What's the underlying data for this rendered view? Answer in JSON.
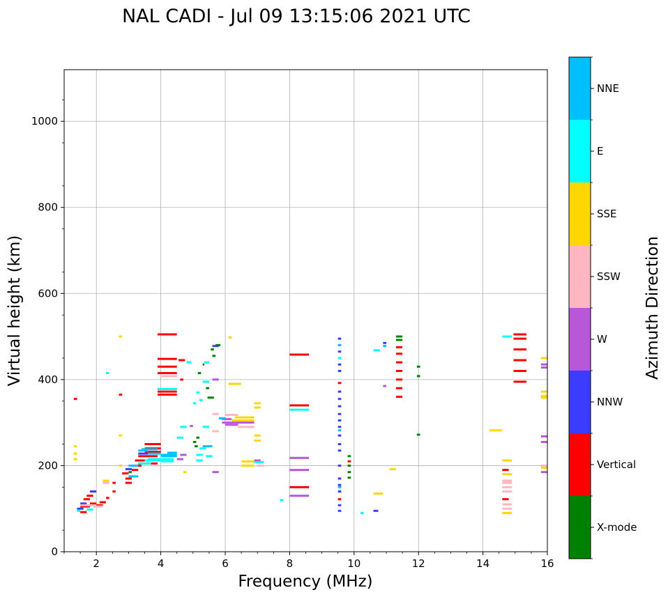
{
  "chart_data": {
    "type": "scatter",
    "title": "NAL CADI - Jul 09 13:15:06 2021 UTC",
    "xlabel": "Frequency (MHz)",
    "ylabel": "Virtual height (km)",
    "xlim": [
      1,
      16
    ],
    "ylim": [
      0,
      1120
    ],
    "xticks": [
      "2",
      "4",
      "6",
      "8",
      "10",
      "12",
      "14",
      "16"
    ],
    "yticks": [
      "0",
      "200",
      "400",
      "600",
      "800",
      "1000"
    ],
    "grid": true,
    "colorbar": {
      "label": "Azimuth Direction",
      "categories": [
        "X-mode",
        "Vertical",
        "NNW",
        "W",
        "SSW",
        "SSE",
        "E",
        "NNE"
      ],
      "colors": [
        "#008000",
        "#ff0000",
        "#3c3cff",
        "#b857d8",
        "#ffb6c1",
        "#ffd700",
        "#00ffff",
        "#00bfff"
      ]
    },
    "series": [
      {
        "name": "X-mode",
        "segments": [
          [
            5.0,
            5.1,
            255
          ],
          [
            5.05,
            5.15,
            245
          ],
          [
            5.1,
            5.2,
            265
          ],
          [
            5.15,
            5.25,
            415
          ],
          [
            5.3,
            5.35,
            435
          ],
          [
            5.4,
            5.5,
            380
          ],
          [
            5.45,
            5.65,
            358
          ],
          [
            5.6,
            5.7,
            455
          ],
          [
            5.55,
            5.65,
            470
          ],
          [
            5.7,
            5.85,
            480
          ],
          [
            11.3,
            11.5,
            492
          ],
          [
            11.3,
            11.5,
            500
          ],
          [
            11.95,
            12.05,
            430
          ],
          [
            11.95,
            12.05,
            408
          ],
          [
            11.95,
            12.05,
            272
          ],
          [
            9.8,
            9.9,
            222
          ],
          [
            9.8,
            9.9,
            200
          ],
          [
            9.8,
            9.9,
            185
          ],
          [
            9.8,
            9.9,
            172
          ],
          [
            3.0,
            3.1,
            185
          ]
        ]
      },
      {
        "name": "Vertical",
        "segments": [
          [
            1.5,
            1.7,
            92
          ],
          [
            1.5,
            1.8,
            105
          ],
          [
            1.6,
            1.8,
            122
          ],
          [
            1.7,
            1.9,
            130
          ],
          [
            1.8,
            2.0,
            112
          ],
          [
            2.0,
            2.2,
            108
          ],
          [
            2.1,
            2.3,
            115
          ],
          [
            2.3,
            2.4,
            125
          ],
          [
            2.5,
            2.6,
            140
          ],
          [
            2.5,
            2.6,
            160
          ],
          [
            2.8,
            3.0,
            182
          ],
          [
            2.9,
            3.1,
            170
          ],
          [
            2.9,
            3.1,
            160
          ],
          [
            3.1,
            3.3,
            190
          ],
          [
            3.2,
            3.4,
            200
          ],
          [
            3.2,
            3.9,
            212
          ],
          [
            3.3,
            3.9,
            205
          ],
          [
            3.3,
            3.9,
            222
          ],
          [
            3.5,
            4.0,
            232
          ],
          [
            3.5,
            4.0,
            240
          ],
          [
            3.5,
            4.0,
            250
          ],
          [
            3.9,
            4.5,
            372
          ],
          [
            3.9,
            4.5,
            365
          ],
          [
            3.9,
            4.5,
            415
          ],
          [
            3.9,
            4.5,
            430
          ],
          [
            3.9,
            4.5,
            448
          ],
          [
            3.9,
            4.5,
            505
          ],
          [
            4.6,
            4.7,
            400
          ],
          [
            4.55,
            4.75,
            445
          ],
          [
            8.0,
            8.6,
            458
          ],
          [
            8.0,
            8.6,
            340
          ],
          [
            8.0,
            8.6,
            150
          ],
          [
            9.5,
            9.6,
            122
          ],
          [
            9.5,
            9.6,
            392
          ],
          [
            9.8,
            9.9,
            210
          ],
          [
            11.3,
            11.5,
            360
          ],
          [
            11.3,
            11.5,
            380
          ],
          [
            11.3,
            11.5,
            400
          ],
          [
            11.3,
            11.5,
            420
          ],
          [
            11.3,
            11.5,
            440
          ],
          [
            11.3,
            11.5,
            460
          ],
          [
            11.3,
            11.5,
            475
          ],
          [
            14.95,
            15.35,
            395
          ],
          [
            14.95,
            15.35,
            420
          ],
          [
            14.95,
            15.35,
            445
          ],
          [
            14.95,
            15.35,
            470
          ],
          [
            14.95,
            15.35,
            495
          ],
          [
            14.95,
            15.35,
            505
          ],
          [
            14.6,
            14.8,
            122
          ],
          [
            14.6,
            14.8,
            190
          ],
          [
            2.7,
            2.8,
            365
          ],
          [
            1.3,
            1.4,
            355
          ]
        ]
      },
      {
        "name": "NNW",
        "segments": [
          [
            1.4,
            1.6,
            100
          ],
          [
            1.5,
            1.7,
            112
          ],
          [
            1.8,
            2.0,
            140
          ],
          [
            2.9,
            3.1,
            192
          ],
          [
            3.3,
            3.6,
            228
          ],
          [
            9.5,
            9.6,
            95
          ],
          [
            9.5,
            9.6,
            108
          ],
          [
            9.5,
            9.6,
            140
          ],
          [
            9.5,
            9.6,
            155
          ],
          [
            9.5,
            9.6,
            170
          ],
          [
            9.5,
            9.6,
            200
          ],
          [
            9.5,
            9.6,
            235
          ],
          [
            9.5,
            9.6,
            250
          ],
          [
            9.5,
            9.6,
            270
          ],
          [
            9.5,
            9.6,
            290
          ],
          [
            9.5,
            9.6,
            305
          ],
          [
            9.5,
            9.6,
            320
          ],
          [
            9.5,
            9.6,
            338
          ],
          [
            9.5,
            9.6,
            355
          ],
          [
            9.5,
            9.6,
            372
          ],
          [
            9.5,
            9.6,
            420
          ],
          [
            9.5,
            9.6,
            435
          ],
          [
            9.5,
            9.6,
            465
          ],
          [
            9.5,
            9.6,
            480
          ],
          [
            9.5,
            9.6,
            495
          ],
          [
            10.6,
            10.75,
            95
          ],
          [
            10.9,
            11.0,
            485
          ],
          [
            5.6,
            5.8,
            478
          ]
        ]
      },
      {
        "name": "W",
        "segments": [
          [
            4.5,
            4.7,
            215
          ],
          [
            4.6,
            4.8,
            225
          ],
          [
            5.6,
            5.8,
            185
          ],
          [
            5.6,
            5.8,
            400
          ],
          [
            5.9,
            6.2,
            308
          ],
          [
            5.9,
            6.3,
            300
          ],
          [
            6.0,
            6.4,
            295
          ],
          [
            6.3,
            6.9,
            300
          ],
          [
            6.9,
            7.1,
            212
          ],
          [
            8.0,
            8.6,
            218
          ],
          [
            8.0,
            8.6,
            190
          ],
          [
            8.0,
            8.6,
            130
          ],
          [
            15.8,
            16.0,
            268
          ],
          [
            15.8,
            16.0,
            255
          ],
          [
            15.8,
            16.0,
            435
          ],
          [
            15.8,
            16.0,
            428
          ],
          [
            15.8,
            16.0,
            185
          ],
          [
            10.9,
            11.0,
            385
          ],
          [
            4.9,
            5.0,
            292
          ]
        ]
      },
      {
        "name": "SSW",
        "segments": [
          [
            1.5,
            1.9,
            108
          ],
          [
            1.9,
            2.2,
            105
          ],
          [
            2.2,
            2.4,
            160
          ],
          [
            5.6,
            5.8,
            280
          ],
          [
            5.6,
            5.8,
            320
          ],
          [
            6.0,
            6.4,
            318
          ],
          [
            6.4,
            6.9,
            290
          ],
          [
            7.0,
            7.2,
            200
          ],
          [
            14.6,
            14.9,
            100
          ],
          [
            14.6,
            14.9,
            110
          ],
          [
            14.6,
            14.9,
            140
          ],
          [
            14.6,
            14.9,
            150
          ],
          [
            14.6,
            14.9,
            160
          ],
          [
            14.6,
            14.9,
            165
          ],
          [
            15.8,
            16.0,
            200
          ],
          [
            4.0,
            4.5,
            408
          ]
        ]
      },
      {
        "name": "SSE",
        "segments": [
          [
            1.3,
            1.4,
            215
          ],
          [
            1.3,
            1.4,
            228
          ],
          [
            1.3,
            1.4,
            245
          ],
          [
            2.2,
            2.4,
            165
          ],
          [
            2.7,
            2.8,
            270
          ],
          [
            2.7,
            2.8,
            200
          ],
          [
            2.7,
            2.8,
            500
          ],
          [
            6.1,
            6.5,
            390
          ],
          [
            6.2,
            6.9,
            305
          ],
          [
            6.3,
            6.9,
            312
          ],
          [
            6.5,
            6.9,
            200
          ],
          [
            6.5,
            6.9,
            210
          ],
          [
            6.9,
            7.1,
            345
          ],
          [
            6.9,
            7.1,
            335
          ],
          [
            6.9,
            7.1,
            270
          ],
          [
            6.9,
            7.1,
            258
          ],
          [
            10.6,
            10.9,
            135
          ],
          [
            11.1,
            11.3,
            192
          ],
          [
            14.2,
            14.6,
            282
          ],
          [
            14.6,
            14.9,
            212
          ],
          [
            14.6,
            14.9,
            180
          ],
          [
            14.6,
            14.9,
            90
          ],
          [
            15.8,
            16.0,
            450
          ],
          [
            15.8,
            16.0,
            372
          ],
          [
            15.8,
            16.0,
            358
          ],
          [
            15.8,
            16.0,
            362
          ],
          [
            15.8,
            16.0,
            195
          ],
          [
            4.7,
            4.8,
            185
          ],
          [
            6.1,
            6.2,
            498
          ]
        ]
      },
      {
        "name": "E",
        "segments": [
          [
            1.4,
            1.5,
            95
          ],
          [
            1.7,
            1.9,
            98
          ],
          [
            3.3,
            3.7,
            205
          ],
          [
            3.5,
            4.0,
            212
          ],
          [
            3.6,
            4.0,
            215
          ],
          [
            4.0,
            4.4,
            210
          ],
          [
            4.0,
            4.4,
            215
          ],
          [
            3.9,
            4.5,
            378
          ],
          [
            4.5,
            4.7,
            265
          ],
          [
            4.6,
            4.8,
            290
          ],
          [
            5.1,
            5.3,
            225
          ],
          [
            5.1,
            5.3,
            212
          ],
          [
            5.2,
            5.4,
            240
          ],
          [
            5.3,
            5.5,
            290
          ],
          [
            5.4,
            5.6,
            222
          ],
          [
            5.3,
            5.5,
            395
          ],
          [
            5.35,
            5.5,
            440
          ],
          [
            6.9,
            7.2,
            208
          ],
          [
            7.7,
            7.8,
            120
          ],
          [
            8.0,
            8.6,
            330
          ],
          [
            9.5,
            9.6,
            450
          ],
          [
            10.2,
            10.3,
            90
          ],
          [
            10.6,
            10.8,
            468
          ],
          [
            14.6,
            14.9,
            500
          ],
          [
            5.2,
            5.3,
            352
          ],
          [
            5.1,
            5.2,
            370
          ],
          [
            5.0,
            5.1,
            345
          ],
          [
            4.8,
            4.95,
            440
          ],
          [
            2.3,
            2.4,
            415
          ]
        ]
      },
      {
        "name": "NNE",
        "segments": [
          [
            3.0,
            3.3,
            200
          ],
          [
            3.0,
            3.3,
            175
          ],
          [
            3.3,
            3.6,
            235
          ],
          [
            3.4,
            3.9,
            238
          ],
          [
            3.6,
            4.0,
            228
          ],
          [
            4.0,
            4.5,
            225
          ],
          [
            4.0,
            4.5,
            222
          ],
          [
            4.2,
            4.5,
            230
          ],
          [
            5.3,
            5.6,
            245
          ],
          [
            5.8,
            6.0,
            310
          ],
          [
            9.5,
            9.6,
            150
          ],
          [
            9.5,
            9.6,
            282
          ],
          [
            9.5,
            9.6,
            480
          ],
          [
            10.9,
            11.0,
            478
          ]
        ]
      }
    ]
  }
}
